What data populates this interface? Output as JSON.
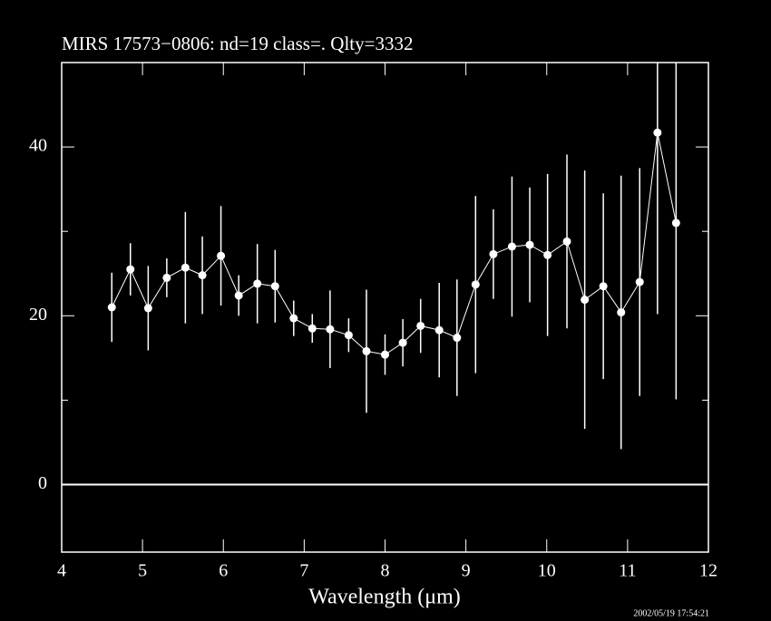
{
  "chart_data": {
    "type": "errorbar",
    "title": "MIRS 17573−0806:    nd=19   class=.   Qlty=3332",
    "x_label": "Wavelength (μm)",
    "timestamp": "2002/05/19 17:54:21",
    "x": [
      4.62,
      4.85,
      5.07,
      5.3,
      5.53,
      5.74,
      5.97,
      6.19,
      6.42,
      6.64,
      6.87,
      7.1,
      7.32,
      7.55,
      7.77,
      8.0,
      8.22,
      8.44,
      8.67,
      8.89,
      9.12,
      9.34,
      9.57,
      9.79,
      10.01,
      10.25,
      10.47,
      10.7,
      10.92,
      11.15,
      11.37,
      11.6
    ],
    "series": [
      {
        "color": "#ffffff",
        "values": [
          21.0,
          25.5,
          20.9,
          24.5,
          25.7,
          24.8,
          27.1,
          22.4,
          23.8,
          23.5,
          19.7,
          18.5,
          18.4,
          17.7,
          15.8,
          15.4,
          16.8,
          18.8,
          18.3,
          17.4,
          23.7,
          27.3,
          28.2,
          28.4,
          27.2,
          28.8,
          21.9,
          23.5,
          20.4,
          24.0,
          41.7,
          31.0
        ],
        "errors": [
          4.1,
          3.1,
          5.0,
          2.3,
          6.6,
          4.6,
          5.9,
          2.4,
          4.7,
          4.3,
          2.1,
          1.7,
          4.6,
          2.0,
          7.3,
          2.4,
          2.8,
          3.2,
          5.6,
          6.9,
          10.5,
          5.3,
          8.3,
          6.8,
          9.6,
          10.3,
          15.3,
          11.0,
          16.2,
          13.5,
          21.5,
          20.9
        ]
      }
    ],
    "xlim": [
      4,
      12
    ],
    "xticks": [
      4,
      5,
      6,
      7,
      8,
      9,
      10,
      11,
      12
    ],
    "ylim": [
      -8,
      50
    ],
    "yticks": [
      0,
      20,
      40
    ],
    "yminorticks": [
      10,
      30
    ],
    "zero_line": true,
    "background": "#000000",
    "foreground": "#ffffff"
  }
}
